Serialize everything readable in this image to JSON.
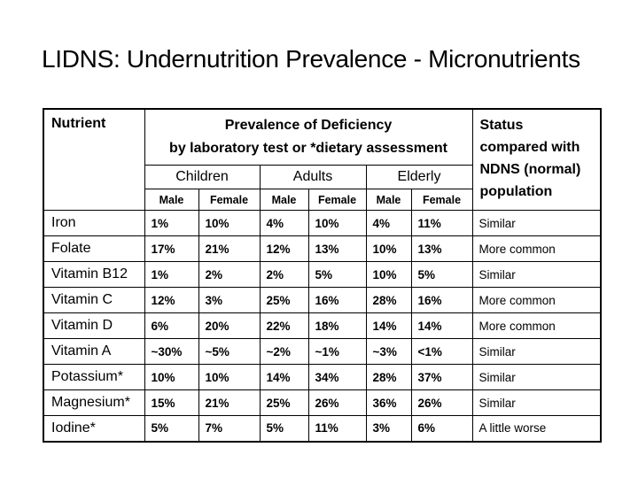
{
  "slide": {
    "title": "LIDNS: Undernutrition Prevalence - Micronutrients"
  },
  "table": {
    "header": {
      "nutrient": "Nutrient",
      "prevalence_line1": "Prevalence of Deficiency",
      "prevalence_line2": "by laboratory test or *dietary assessment",
      "groups": [
        "Children",
        "Adults",
        "Elderly"
      ],
      "sex_labels": [
        "Male",
        "Female",
        "Male",
        "Female",
        "Male",
        "Female"
      ],
      "status": "Status compared with NDNS (normal) population"
    },
    "rows": [
      {
        "nutrient": "Iron",
        "values": [
          "1%",
          "10%",
          "4%",
          "10%",
          "4%",
          "11%"
        ],
        "status": "Similar"
      },
      {
        "nutrient": "Folate",
        "values": [
          "17%",
          "21%",
          "12%",
          "13%",
          "10%",
          "13%"
        ],
        "status": "More common"
      },
      {
        "nutrient": "Vitamin B12",
        "values": [
          "1%",
          "2%",
          "2%",
          "5%",
          "10%",
          "5%"
        ],
        "status": "Similar"
      },
      {
        "nutrient": "Vitamin C",
        "values": [
          "12%",
          "3%",
          "25%",
          "16%",
          "28%",
          "16%"
        ],
        "status": "More common"
      },
      {
        "nutrient": "Vitamin D",
        "values": [
          "6%",
          "20%",
          "22%",
          "18%",
          "14%",
          "14%"
        ],
        "status": "More common"
      },
      {
        "nutrient": "Vitamin A",
        "values": [
          "~30%",
          "~5%",
          "~2%",
          "~1%",
          "~3%",
          "<1%"
        ],
        "status": "Similar"
      },
      {
        "nutrient": "Potassium*",
        "values": [
          "10%",
          "10%",
          "14%",
          "34%",
          "28%",
          "37%"
        ],
        "status": "Similar"
      },
      {
        "nutrient": "Magnesium*",
        "values": [
          "15%",
          "21%",
          "25%",
          "26%",
          "36%",
          "26%"
        ],
        "status": "Similar"
      },
      {
        "nutrient": "Iodine*",
        "values": [
          "5%",
          "7%",
          "5%",
          "11%",
          "3%",
          "6%"
        ],
        "status": "A little worse"
      }
    ],
    "colors": {
      "text": "#000000",
      "border": "#000000",
      "background": "#ffffff"
    }
  }
}
